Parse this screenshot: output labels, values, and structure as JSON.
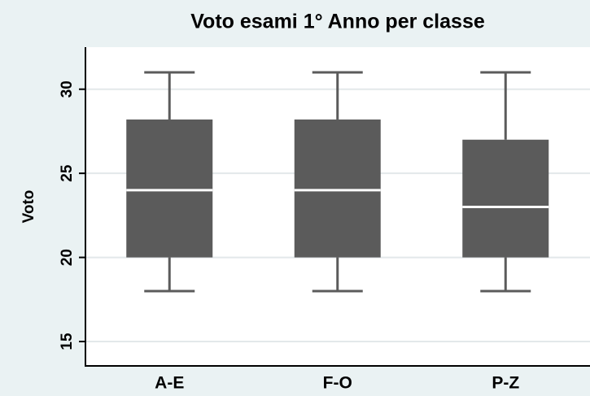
{
  "chart_data": {
    "type": "box",
    "title": "Voto esami 1° Anno  per classe",
    "y_label": "Voto",
    "categories": [
      "A-E",
      "F-O",
      "P-Z"
    ],
    "boxes": [
      {
        "min": 18,
        "q1": 20,
        "median": 24,
        "q3": 28.2,
        "max": 31
      },
      {
        "min": 18,
        "q1": 20,
        "median": 24,
        "q3": 28.2,
        "max": 31
      },
      {
        "min": 18,
        "q1": 20,
        "median": 23,
        "q3": 27,
        "max": 31
      }
    ],
    "color": "#5b5b5b",
    "median_color": "#ffffff",
    "ylim": [
      13.55,
      32.5
    ],
    "yticks": [
      15,
      20,
      25,
      30
    ],
    "grid": true
  }
}
